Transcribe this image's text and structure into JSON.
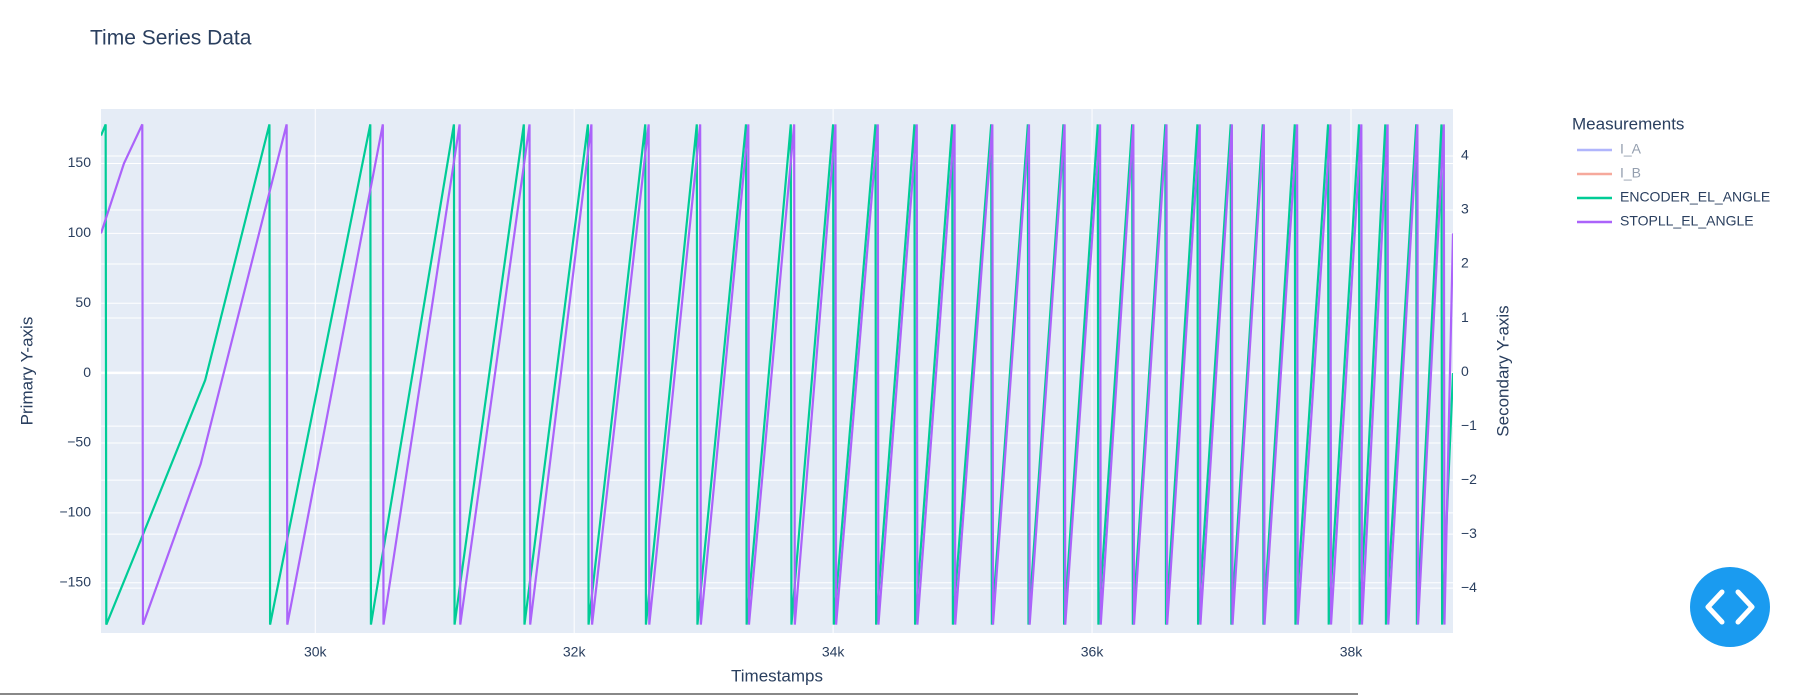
{
  "chart_data": {
    "type": "line",
    "title": "Time Series Data",
    "x_label": "Timestamps",
    "y_label": "Primary Y-axis",
    "y2_label": "Secondary Y-axis",
    "legend_title": "Measurements",
    "legend_position": "right",
    "grid": true,
    "background": "#e5ecf6",
    "xlim": [
      28345,
      38788
    ],
    "xticks": [
      {
        "value": 30000,
        "label": "30k"
      },
      {
        "value": 32000,
        "label": "32k"
      },
      {
        "value": 34000,
        "label": "34k"
      },
      {
        "value": 36000,
        "label": "36k"
      },
      {
        "value": 38000,
        "label": "38k"
      }
    ],
    "ylim": [
      -186,
      189
    ],
    "yticks": [
      {
        "value": -150,
        "label": "−150"
      },
      {
        "value": -100,
        "label": "−100"
      },
      {
        "value": -50,
        "label": "−50"
      },
      0,
      50,
      100,
      150
    ],
    "y2lim": [
      -4.83,
      4.87
    ],
    "y2ticks": [
      {
        "value": -4,
        "label": "−4"
      },
      {
        "value": -3,
        "label": "−3"
      },
      {
        "value": -2,
        "label": "−2"
      },
      {
        "value": -1,
        "label": "−1"
      },
      0,
      1,
      2,
      3,
      4
    ],
    "series": [
      {
        "name": "I_A",
        "color": "#636efa",
        "visible": "legendonly"
      },
      {
        "name": "I_B",
        "color": "#EF553B",
        "visible": "legendonly"
      },
      {
        "name": "ENCODER_EL_ANGLE",
        "color": "#00cc96",
        "x": [
          28345,
          28381,
          28386,
          28628,
          29150,
          29646,
          29651,
          30425,
          30430,
          31071,
          31076,
          31611,
          31616,
          32106,
          32111,
          32549,
          32554,
          32947,
          32952,
          33327,
          33332,
          33673,
          33678,
          34000,
          34005,
          34327,
          34332,
          34628,
          34633,
          34920,
          34925,
          35221,
          35226,
          35504,
          35509,
          35779,
          35784,
          36044,
          36049,
          36310,
          36315,
          36566,
          36571,
          36814,
          36819,
          37071,
          37076,
          37319,
          37324,
          37566,
          37571,
          37823,
          37828,
          38062,
          38067,
          38265,
          38270,
          38504,
          38509,
          38699,
          38704,
          38788
        ],
        "values": [
          170,
          178,
          -180,
          -125,
          -5,
          178,
          -180,
          178,
          -180,
          178,
          -180,
          178,
          -180,
          178,
          -180,
          178,
          -180,
          178,
          -180,
          178,
          -180,
          178,
          -180,
          178,
          -180,
          178,
          -180,
          178,
          -180,
          178,
          -180,
          178,
          -180,
          178,
          -180,
          178,
          -180,
          178,
          -180,
          178,
          -180,
          178,
          -180,
          178,
          -180,
          178,
          -180,
          178,
          -180,
          178,
          -180,
          178,
          -180,
          178,
          -180,
          178,
          -180,
          178,
          -180,
          178,
          -180,
          0
        ]
      },
      {
        "name": "STOPLL_EL_ANGLE",
        "color": "#ab63fa",
        "x": [
          28345,
          28522,
          28664,
          28669,
          29115,
          29779,
          29784,
          30522,
          30527,
          31115,
          31120,
          31655,
          31660,
          32133,
          32138,
          32575,
          32580,
          32973,
          32978,
          33345,
          33350,
          33699,
          33704,
          34018,
          34023,
          34345,
          34350,
          34646,
          34651,
          34938,
          34943,
          35230,
          35235,
          35513,
          35518,
          35788,
          35793,
          36062,
          36067,
          36319,
          36324,
          36575,
          36580,
          36832,
          36837,
          37080,
          37085,
          37327,
          37332,
          37584,
          37589,
          37841,
          37846,
          38080,
          38085,
          38283,
          38288,
          38513,
          38518,
          38717,
          38722,
          38788
        ],
        "values": [
          100,
          150,
          178,
          -180,
          -65,
          178,
          -180,
          178,
          -180,
          178,
          -180,
          178,
          -180,
          178,
          -180,
          178,
          -180,
          178,
          -180,
          178,
          -180,
          178,
          -180,
          178,
          -180,
          178,
          -180,
          178,
          -180,
          178,
          -180,
          178,
          -180,
          178,
          -180,
          178,
          -180,
          178,
          -180,
          178,
          -180,
          178,
          -180,
          178,
          -180,
          178,
          -180,
          178,
          -180,
          178,
          -180,
          178,
          -180,
          178,
          -180,
          178,
          -180,
          178,
          -180,
          178,
          -180,
          100
        ]
      }
    ]
  }
}
